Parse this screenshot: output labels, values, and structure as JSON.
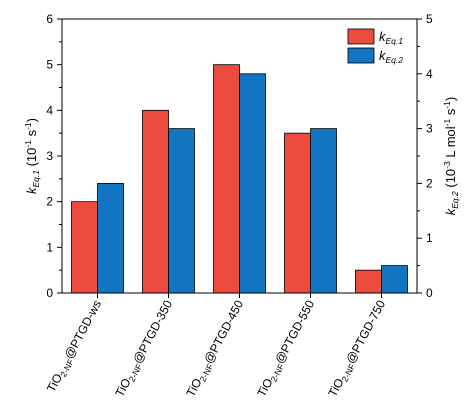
{
  "chart_data": {
    "type": "bar",
    "categories": [
      {
        "base": "TiO",
        "sub1": "2-NF",
        "rest": "@PTGD-ws"
      },
      {
        "base": "TiO",
        "sub1": "2-NF",
        "rest": "@PTGD-350"
      },
      {
        "base": "TiO",
        "sub1": "2-NF",
        "rest": "@PTGD-450"
      },
      {
        "base": "TiO",
        "sub1": "2-NF",
        "rest": "@PTGD-550"
      },
      {
        "base": "TiO",
        "sub1": "2-NF",
        "rest": "@PTGD-750"
      }
    ],
    "series": [
      {
        "name": "k_Eq.1",
        "name_main": "k",
        "name_sub": "Eq.1",
        "axis": "left",
        "color": "#ee4b3f",
        "values": [
          2.0,
          4.0,
          5.0,
          3.5,
          0.5
        ]
      },
      {
        "name": "k_Eq.2",
        "name_main": "k",
        "name_sub": "Eq.2",
        "axis": "right",
        "color": "#1275c1",
        "values": [
          2.0,
          3.0,
          4.0,
          3.0,
          0.5
        ]
      }
    ],
    "left_axis": {
      "range": [
        0,
        6
      ],
      "ticks": [
        "0",
        "1",
        "2",
        "3",
        "4",
        "5",
        "6"
      ]
    },
    "right_axis": {
      "range": [
        0,
        5
      ],
      "ticks": [
        "0",
        "1",
        "2",
        "3",
        "4",
        "5"
      ]
    },
    "ylabel_left": {
      "k": "k",
      "sub": "Eq.1",
      "unit_open": " (10",
      "exp1": "-1",
      "mid": " s",
      "exp2": "-1",
      "close": ")"
    },
    "ylabel_right": {
      "k": "k",
      "sub": "Eq.2",
      "unit_open": " (10",
      "exp1": "-3",
      "mid": " L mol",
      "exp2": "-1",
      "mid2": " s",
      "exp3": "-1",
      "close": ")"
    },
    "legend_position": "top-right",
    "grid": false
  }
}
